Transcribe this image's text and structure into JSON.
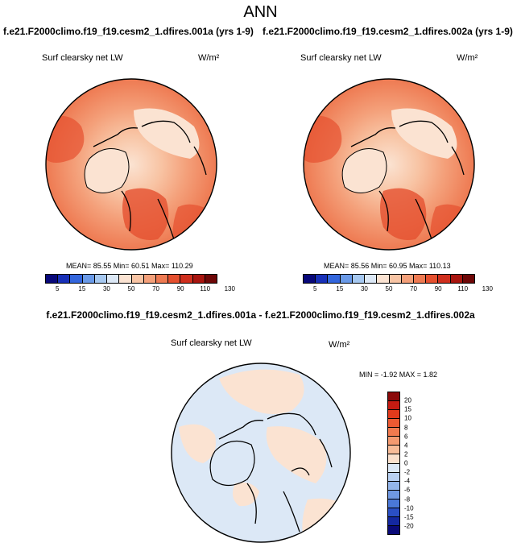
{
  "page_title": "ANN",
  "left_panel": {
    "case": "f.e21.F2000climo.f19_f19.cesm2_1.dfires.001a (yrs 1-9)",
    "variable": "Surf clearsky net LW",
    "units": "W/m²",
    "stats": "MEAN=  85.55  Min=  60.51  Max= 110.29"
  },
  "right_panel": {
    "case": "f.e21.F2000climo.f19_f19.cesm2_1.dfires.002a (yrs 1-9)",
    "variable": "Surf clearsky net LW",
    "units": "W/m²",
    "stats": "MEAN=  85.56  Min=  60.95  Max= 110.13"
  },
  "diff_panel": {
    "title": "f.e21.F2000climo.f19_f19.cesm2_1.dfires.001a - f.e21.F2000climo.f19_f19.cesm2_1.dfires.002a",
    "variable": "Surf clearsky net LW",
    "units": "W/m²",
    "stats": "MIN =  -1.92  MAX =   1.82"
  },
  "field_colorbar": {
    "labels": [
      "5",
      "15",
      "30",
      "50",
      "70",
      "90",
      "110",
      "130"
    ],
    "colors": [
      "#08087a",
      "#1830b8",
      "#3366dd",
      "#6a9ae8",
      "#a6c8f0",
      "#dce8f6",
      "#fbe3d2",
      "#f8c4a4",
      "#f4a07a",
      "#ee7a52",
      "#e5502f",
      "#cf2f1e",
      "#a8150f",
      "#6e0707"
    ]
  },
  "diff_colorbar": {
    "labels": [
      "20",
      "15",
      "10",
      "8",
      "6",
      "4",
      "2",
      "0",
      "-2",
      "-4",
      "-6",
      "-8",
      "-10",
      "-15",
      "-20"
    ],
    "colors": [
      "#8b0a0a",
      "#c51b12",
      "#e23a1c",
      "#ed5a32",
      "#f27a4e",
      "#f59a70",
      "#f8bc98",
      "#fbe0cc",
      "#dce8f6",
      "#b8d0f2",
      "#93b5ea",
      "#6f98e2",
      "#4a78d8",
      "#2a4fc4",
      "#1428a0",
      "#0a0a78"
    ]
  }
}
